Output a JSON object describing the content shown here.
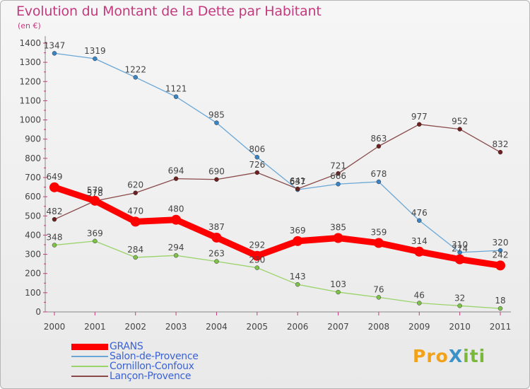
{
  "header": {
    "title": "Evolution du Montant de la Dette par Habitant",
    "subtitle": "(en €)"
  },
  "logo": {
    "text": "ProXiti",
    "letters": [
      {
        "ch": "P",
        "color": "#f2a21a"
      },
      {
        "ch": "r",
        "color": "#f2a21a"
      },
      {
        "ch": "o",
        "color": "#f2a21a"
      },
      {
        "ch": "X",
        "color": "#3a92c8"
      },
      {
        "ch": "i",
        "color": "#7ab83a"
      },
      {
        "ch": "t",
        "color": "#7ab83a"
      },
      {
        "ch": "i",
        "color": "#7ab83a"
      }
    ]
  },
  "chart_data": {
    "type": "line",
    "title": "Evolution du Montant de la Dette par Habitant",
    "subtitle": "(en €)",
    "xlabel": "",
    "ylabel": "",
    "categories": [
      "2000",
      "2001",
      "2002",
      "2003",
      "2004",
      "2005",
      "2006",
      "2007",
      "2008",
      "2009",
      "2010",
      "2011"
    ],
    "ylim": [
      0,
      1400
    ],
    "yticks": [
      0,
      100,
      200,
      300,
      400,
      500,
      600,
      700,
      800,
      900,
      1000,
      1100,
      1200,
      1300,
      1400
    ],
    "grid": false,
    "legend_position": "bottom-left",
    "series": [
      {
        "name": "GRANS",
        "color": "#ff0000",
        "marker_color": "#ff0000",
        "emphasis": true,
        "values": [
          649,
          579,
          470,
          480,
          387,
          292,
          369,
          385,
          359,
          314,
          274,
          242
        ]
      },
      {
        "name": "Salon-de-Provence",
        "color": "#6aa7d6",
        "marker_color": "#3a84c3",
        "values": [
          1347,
          1319,
          1222,
          1121,
          985,
          806,
          637,
          666,
          678,
          476,
          310,
          320
        ]
      },
      {
        "name": "Cornillon-Confoux",
        "color": "#9ad36a",
        "marker_color": "#7fc24a",
        "values": [
          348,
          369,
          284,
          294,
          263,
          230,
          143,
          103,
          76,
          46,
          32,
          18
        ]
      },
      {
        "name": "Lançon-Provence",
        "color": "#8a4a4a",
        "marker_color": "#6e1f1f",
        "values": [
          482,
          578,
          620,
          694,
          690,
          726,
          641,
          721,
          863,
          977,
          952,
          832
        ]
      }
    ]
  }
}
